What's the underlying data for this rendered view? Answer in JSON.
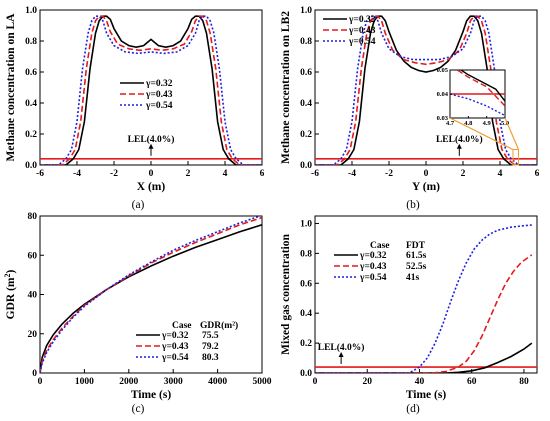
{
  "figure": {
    "panels": [
      {
        "id": "a",
        "label": "(a)"
      },
      {
        "id": "b",
        "label": "(b)"
      },
      {
        "id": "c",
        "label": "(c)"
      },
      {
        "id": "d",
        "label": "(d)"
      }
    ]
  },
  "chart_data": [
    {
      "id": "a",
      "type": "line",
      "title": "",
      "xlabel": "X (m)",
      "ylabel": "Methane concentration on LA",
      "xlim": [
        -6,
        6
      ],
      "ylim": [
        0,
        1.0
      ],
      "xticks": [
        "-6",
        "-4",
        "-2",
        "0",
        "2",
        "4",
        "6"
      ],
      "yticks": [
        "0.0",
        "0.2",
        "0.4",
        "0.6",
        "0.8",
        "1.0"
      ],
      "legend_position": "center",
      "series": [
        {
          "name": "γ=0.32",
          "color": "#000000",
          "dash": "solid",
          "x": [
            -6,
            -4.6,
            -4.2,
            -3.9,
            -3.6,
            -3.3,
            -3.0,
            -2.8,
            -2.6,
            -2.4,
            -2.2,
            -2.0,
            -1.6,
            -1.2,
            -0.8,
            -0.4,
            -0.2,
            0,
            0.2,
            0.4,
            0.8,
            1.2,
            1.6,
            2.0,
            2.2,
            2.4,
            2.6,
            2.8,
            3.0,
            3.3,
            3.6,
            3.9,
            4.2,
            4.6,
            6
          ],
          "y": [
            0.0,
            0.0,
            0.04,
            0.1,
            0.28,
            0.62,
            0.85,
            0.93,
            0.96,
            0.96,
            0.94,
            0.88,
            0.8,
            0.77,
            0.76,
            0.77,
            0.79,
            0.81,
            0.79,
            0.77,
            0.76,
            0.77,
            0.8,
            0.88,
            0.94,
            0.96,
            0.96,
            0.93,
            0.85,
            0.62,
            0.28,
            0.1,
            0.04,
            0.0,
            0.0
          ]
        },
        {
          "name": "γ=0.43",
          "color": "#e41a1c",
          "dash": "dashed",
          "x": [
            -6,
            -4.8,
            -4.4,
            -4.1,
            -3.8,
            -3.5,
            -3.2,
            -3.0,
            -2.8,
            -2.6,
            -2.4,
            -2.2,
            -1.8,
            -1.2,
            -0.6,
            0,
            0.6,
            1.2,
            1.8,
            2.2,
            2.4,
            2.6,
            2.8,
            3.0,
            3.2,
            3.5,
            3.8,
            4.1,
            4.4,
            4.8,
            6
          ],
          "y": [
            0.0,
            0.0,
            0.04,
            0.1,
            0.28,
            0.62,
            0.85,
            0.93,
            0.96,
            0.96,
            0.93,
            0.86,
            0.78,
            0.75,
            0.74,
            0.75,
            0.74,
            0.75,
            0.78,
            0.86,
            0.93,
            0.96,
            0.96,
            0.93,
            0.85,
            0.62,
            0.28,
            0.1,
            0.04,
            0.0,
            0.0
          ]
        },
        {
          "name": "γ=0.54",
          "color": "#1f1fe0",
          "dash": "dotted",
          "x": [
            -6,
            -5.0,
            -4.6,
            -4.3,
            -4.0,
            -3.7,
            -3.4,
            -3.2,
            -3.0,
            -2.8,
            -2.6,
            -2.4,
            -2.0,
            -1.4,
            -0.7,
            0,
            0.7,
            1.4,
            2.0,
            2.4,
            2.6,
            2.8,
            3.0,
            3.2,
            3.4,
            3.7,
            4.0,
            4.3,
            4.6,
            5.0,
            6
          ],
          "y": [
            0.0,
            0.0,
            0.04,
            0.1,
            0.28,
            0.62,
            0.85,
            0.93,
            0.96,
            0.96,
            0.93,
            0.85,
            0.77,
            0.73,
            0.72,
            0.73,
            0.72,
            0.73,
            0.77,
            0.85,
            0.93,
            0.96,
            0.96,
            0.93,
            0.85,
            0.62,
            0.28,
            0.1,
            0.04,
            0.0,
            0.0
          ]
        }
      ],
      "hline": {
        "y": 0.04,
        "color": "#e41a1c",
        "label": "LEL(4.0%)"
      }
    },
    {
      "id": "b",
      "type": "line",
      "title": "",
      "xlabel": "Y (m)",
      "ylabel": "Methane concentration on LB2",
      "xlim": [
        -6,
        6
      ],
      "ylim": [
        0,
        1.0
      ],
      "xticks": [
        "-6",
        "-4",
        "-2",
        "0",
        "2",
        "4",
        "6"
      ],
      "yticks": [
        "0.0",
        "0.2",
        "0.4",
        "0.6",
        "0.8",
        "1.0"
      ],
      "legend_position": "top-left",
      "series": [
        {
          "name": "γ=0.32",
          "color": "#000000",
          "dash": "solid",
          "x": [
            -6,
            -4.6,
            -4.2,
            -3.9,
            -3.6,
            -3.3,
            -3.0,
            -2.8,
            -2.6,
            -2.4,
            -2.2,
            -2.0,
            -1.6,
            -1.2,
            -0.8,
            -0.4,
            0,
            0.4,
            0.8,
            1.2,
            1.6,
            2.0,
            2.2,
            2.4,
            2.6,
            2.8,
            3.0,
            3.3,
            3.6,
            3.9,
            4.2,
            4.6,
            6
          ],
          "y": [
            0.0,
            0.0,
            0.04,
            0.1,
            0.28,
            0.62,
            0.85,
            0.93,
            0.96,
            0.96,
            0.93,
            0.86,
            0.74,
            0.67,
            0.63,
            0.61,
            0.6,
            0.61,
            0.63,
            0.67,
            0.74,
            0.86,
            0.93,
            0.96,
            0.96,
            0.93,
            0.85,
            0.62,
            0.28,
            0.1,
            0.04,
            0.0,
            0.0
          ]
        },
        {
          "name": "γ=0.43",
          "color": "#e41a1c",
          "dash": "dashed",
          "x": [
            -6,
            -4.8,
            -4.4,
            -4.1,
            -3.8,
            -3.5,
            -3.2,
            -3.0,
            -2.8,
            -2.6,
            -2.4,
            -2.2,
            -1.8,
            -1.2,
            -0.6,
            0,
            0.6,
            1.2,
            1.8,
            2.2,
            2.4,
            2.6,
            2.8,
            3.0,
            3.2,
            3.5,
            3.8,
            4.1,
            4.4,
            4.8,
            6
          ],
          "y": [
            0.0,
            0.0,
            0.04,
            0.1,
            0.28,
            0.62,
            0.85,
            0.93,
            0.96,
            0.96,
            0.93,
            0.85,
            0.74,
            0.68,
            0.66,
            0.65,
            0.66,
            0.68,
            0.74,
            0.85,
            0.93,
            0.96,
            0.96,
            0.93,
            0.85,
            0.62,
            0.28,
            0.1,
            0.04,
            0.0,
            0.0
          ]
        },
        {
          "name": "γ=0.54",
          "color": "#1f1fe0",
          "dash": "dotted",
          "x": [
            -6,
            -5.0,
            -4.6,
            -4.3,
            -4.0,
            -3.7,
            -3.4,
            -3.2,
            -3.0,
            -2.8,
            -2.6,
            -2.4,
            -2.0,
            -1.4,
            -0.7,
            0,
            0.7,
            1.4,
            2.0,
            2.4,
            2.6,
            2.8,
            3.0,
            3.2,
            3.4,
            3.7,
            4.0,
            4.3,
            4.6,
            5.0,
            6
          ],
          "y": [
            0.0,
            0.0,
            0.04,
            0.1,
            0.28,
            0.62,
            0.85,
            0.93,
            0.96,
            0.96,
            0.93,
            0.85,
            0.75,
            0.7,
            0.68,
            0.68,
            0.68,
            0.7,
            0.75,
            0.85,
            0.93,
            0.96,
            0.96,
            0.93,
            0.85,
            0.62,
            0.28,
            0.1,
            0.04,
            0.0,
            0.0
          ]
        }
      ],
      "hline": {
        "y": 0.04,
        "color": "#e41a1c",
        "label": "LEL(4.0%)"
      },
      "inset": {
        "xlim": [
          4.7,
          5.0
        ],
        "ylim": [
          0.03,
          0.05
        ],
        "xticks": [
          "4.7",
          "4.8",
          "4.9",
          "5.0"
        ],
        "yticks": [
          "0.03",
          "0.04",
          "0.05"
        ],
        "zoom_region": {
          "x": [
            4.7,
            5.0
          ],
          "y": [
            0.03,
            0.05
          ]
        },
        "connector_color": "#f0a030",
        "series": [
          {
            "name": "γ=0.32",
            "x": [
              4.7,
              4.8,
              4.9,
              4.95,
              5.0
            ],
            "y": [
              0.053,
              0.048,
              0.044,
              0.042,
              0.037
            ]
          },
          {
            "name": "γ=0.43",
            "x": [
              4.7,
              4.8,
              4.9,
              5.0
            ],
            "y": [
              0.052,
              0.047,
              0.043,
              0.035
            ]
          },
          {
            "name": "γ=0.54",
            "x": [
              4.7,
              4.8,
              4.9,
              5.0
            ],
            "y": [
              0.04,
              0.038,
              0.035,
              0.031
            ]
          }
        ],
        "hline": {
          "y": 0.04
        }
      }
    },
    {
      "id": "c",
      "type": "line",
      "title": "",
      "xlabel": "Time (s)",
      "ylabel": "GDR (m²)",
      "ylabel_parts": {
        "base": "GDR (m",
        "sup": "2",
        "close": ")"
      },
      "xlim": [
        0,
        5000
      ],
      "ylim": [
        0,
        80
      ],
      "xticks": [
        "0",
        "1000",
        "2000",
        "3000",
        "4000",
        "5000"
      ],
      "yticks": [
        "0",
        "20",
        "40",
        "60",
        "80"
      ],
      "legend_position": "bottom-right",
      "legend_headers": [
        "Case",
        "GDR(m²)"
      ],
      "series": [
        {
          "name": "γ=0.32",
          "value_label": "75.5",
          "color": "#000000",
          "dash": "solid",
          "x": [
            0,
            50,
            150,
            300,
            500,
            750,
            1000,
            1500,
            2000,
            2500,
            3000,
            3500,
            4000,
            4500,
            5000
          ],
          "y": [
            0,
            8,
            14,
            19.5,
            25,
            30.5,
            35,
            42.5,
            49,
            54.5,
            59.5,
            64,
            68,
            72,
            75.5
          ]
        },
        {
          "name": "γ=0.43",
          "value_label": "79.2",
          "color": "#e41a1c",
          "dash": "dashed",
          "x": [
            0,
            50,
            150,
            300,
            500,
            750,
            1000,
            1500,
            2000,
            2500,
            3000,
            3500,
            4000,
            4500,
            5000
          ],
          "y": [
            0,
            6,
            11.5,
            17,
            23,
            29,
            34.5,
            42.5,
            49.5,
            56,
            61.5,
            66.5,
            71,
            75.5,
            79.2
          ]
        },
        {
          "name": "γ=0.54",
          "value_label": "80.3",
          "color": "#1f1fe0",
          "dash": "dotted",
          "x": [
            0,
            50,
            150,
            300,
            500,
            750,
            1000,
            1500,
            2000,
            2500,
            3000,
            3500,
            4000,
            4500,
            5000
          ],
          "y": [
            0,
            5,
            10.5,
            16,
            22,
            28.5,
            34,
            42.5,
            50,
            56.5,
            62.5,
            67.5,
            72,
            76.5,
            80.3
          ]
        }
      ]
    },
    {
      "id": "d",
      "type": "line",
      "title": "",
      "xlabel": "Time (s)",
      "ylabel": "Mixed gas concentration",
      "xlim": [
        0,
        85
      ],
      "ylim": [
        0,
        1.05
      ],
      "xticks": [
        "0",
        "20",
        "40",
        "60",
        "80"
      ],
      "yticks": [
        "0.0",
        "0.2",
        "0.4",
        "0.6",
        "0.8",
        "1.0"
      ],
      "legend_position": "top-left",
      "legend_headers": [
        "Case",
        "FDT"
      ],
      "series": [
        {
          "name": "γ=0.32",
          "value_label": "61.5s",
          "color": "#000000",
          "dash": "solid",
          "x": [
            0,
            50,
            55,
            60,
            65,
            70,
            75,
            80,
            83
          ],
          "y": [
            0,
            0,
            0.005,
            0.015,
            0.035,
            0.07,
            0.11,
            0.16,
            0.2
          ]
        },
        {
          "name": "γ=0.43",
          "value_label": "52.5s",
          "color": "#e41a1c",
          "dash": "dashed",
          "x": [
            0,
            45,
            50,
            55,
            58,
            61,
            64,
            67,
            70,
            73,
            76,
            79,
            83
          ],
          "y": [
            0,
            0,
            0.01,
            0.04,
            0.08,
            0.15,
            0.25,
            0.37,
            0.49,
            0.6,
            0.68,
            0.74,
            0.79
          ]
        },
        {
          "name": "γ=0.54",
          "value_label": "41s",
          "color": "#1f1fe0",
          "dash": "dotted",
          "x": [
            0,
            36,
            40,
            43,
            46,
            49,
            52,
            55,
            58,
            61,
            64,
            67,
            70,
            75,
            80,
            83
          ],
          "y": [
            0,
            0,
            0.04,
            0.1,
            0.2,
            0.33,
            0.48,
            0.62,
            0.74,
            0.83,
            0.89,
            0.93,
            0.955,
            0.975,
            0.985,
            0.99
          ]
        }
      ],
      "hline": {
        "y": 0.04,
        "color": "#e41a1c",
        "label": "LEL(4.0%)"
      }
    }
  ]
}
